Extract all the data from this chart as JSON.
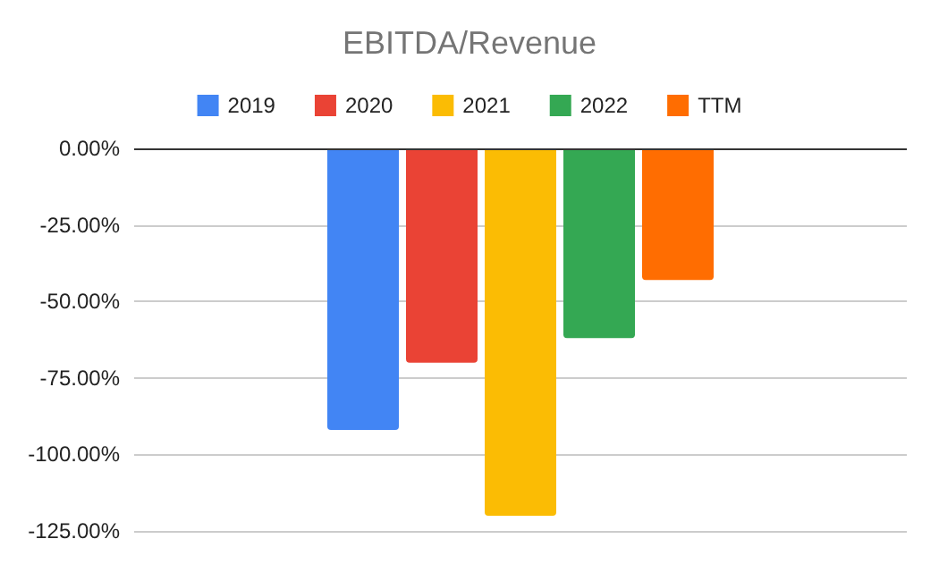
{
  "chart_data": {
    "type": "bar",
    "title": "EBITDA/Revenue",
    "categories": [
      null
    ],
    "series": [
      {
        "name": "2019",
        "color": "#4285f4",
        "values": [
          -92
        ]
      },
      {
        "name": "2020",
        "color": "#ea4335",
        "values": [
          -70
        ]
      },
      {
        "name": "2021",
        "color": "#fbbc04",
        "values": [
          -120
        ]
      },
      {
        "name": "2022",
        "color": "#34a853",
        "values": [
          -62
        ]
      },
      {
        "name": "TTM",
        "color": "#ff6d01",
        "values": [
          -43
        ]
      }
    ],
    "ylim": [
      -125,
      0
    ],
    "yticks": [
      {
        "value": 0,
        "label": "0.00%"
      },
      {
        "value": -25,
        "label": "-25.00%"
      },
      {
        "value": -50,
        "label": "-50.00%"
      },
      {
        "value": -75,
        "label": "-75.00%"
      },
      {
        "value": -100,
        "label": "-100.00%"
      },
      {
        "value": -125,
        "label": "-125.00%"
      }
    ],
    "grid": "y",
    "legend": "top"
  }
}
